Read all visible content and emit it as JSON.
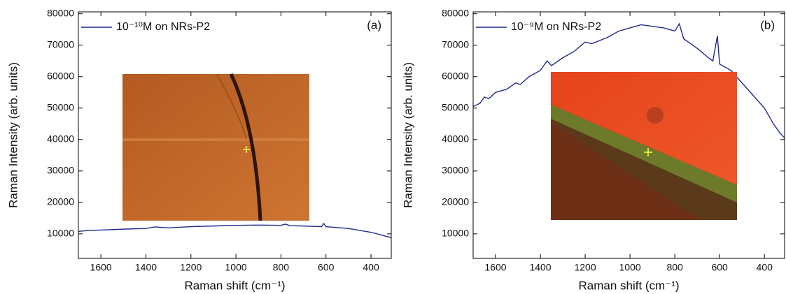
{
  "chart_data": [
    {
      "type": "line",
      "x_label": "Raman shift (cm⁻¹)",
      "y_label": "Raman Intensity (arb. units)",
      "annotation": "(a)",
      "xlim": [
        1700,
        310
      ],
      "xticks": [
        1600,
        1400,
        1200,
        1000,
        800,
        600,
        400
      ],
      "ylim": [
        2200,
        80600
      ],
      "yticks": [
        10000,
        20000,
        30000,
        40000,
        50000,
        60000,
        70000,
        80000
      ],
      "x": [
        1700,
        1650,
        1600,
        1500,
        1400,
        1360,
        1300,
        1200,
        1100,
        1000,
        900,
        800,
        780,
        760,
        700,
        620,
        610,
        600,
        500,
        400,
        310
      ],
      "series": [
        {
          "name": "10⁻¹⁰M on NRs-P2",
          "color": "#1f2a8c",
          "values": [
            10800,
            11100,
            11200,
            11500,
            11700,
            12200,
            11900,
            12300,
            12500,
            12700,
            12800,
            12700,
            13100,
            12600,
            12500,
            12300,
            13300,
            12300,
            11700,
            10500,
            8800
          ]
        }
      ]
    },
    {
      "type": "line",
      "x_label": "Raman shift (cm⁻¹)",
      "y_label": "Raman Intensity (arb. units)",
      "annotation": "(b)",
      "xlim": [
        1700,
        310
      ],
      "xticks": [
        1600,
        1400,
        1200,
        1000,
        800,
        600,
        400
      ],
      "ylim": [
        2200,
        80600
      ],
      "yticks": [
        10000,
        20000,
        30000,
        40000,
        50000,
        60000,
        70000,
        80000
      ],
      "x": [
        1700,
        1670,
        1650,
        1630,
        1600,
        1550,
        1510,
        1490,
        1450,
        1400,
        1370,
        1350,
        1300,
        1250,
        1200,
        1170,
        1100,
        1050,
        1000,
        950,
        900,
        850,
        800,
        780,
        760,
        700,
        650,
        630,
        610,
        600,
        550,
        500,
        450,
        400,
        360,
        330,
        310
      ],
      "series": [
        {
          "name": "10⁻⁹M on NRs-P2",
          "color": "#1f2a8c",
          "values": [
            50500,
            51500,
            53500,
            53000,
            55000,
            56000,
            58000,
            57500,
            60000,
            62000,
            65000,
            63500,
            66000,
            68000,
            71000,
            70500,
            72500,
            74500,
            75500,
            76500,
            76000,
            75500,
            74500,
            76800,
            72000,
            69000,
            66000,
            65000,
            73000,
            64000,
            62000,
            58000,
            54000,
            50000,
            45000,
            42000,
            40500
          ]
        }
      ]
    }
  ]
}
